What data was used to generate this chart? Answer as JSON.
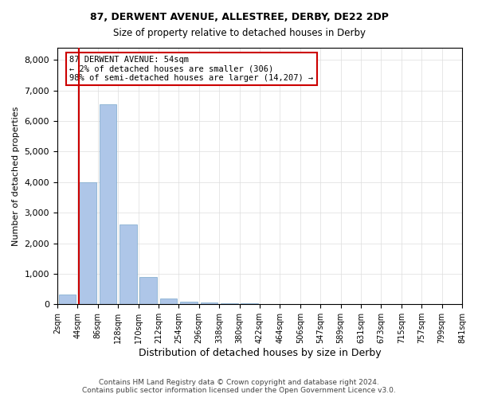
{
  "title1": "87, DERWENT AVENUE, ALLESTREE, DERBY, DE22 2DP",
  "title2": "Size of property relative to detached houses in Derby",
  "xlabel": "Distribution of detached houses by size in Derby",
  "ylabel": "Number of detached properties",
  "footnote": "Contains HM Land Registry data © Crown copyright and database right 2024.\nContains public sector information licensed under the Open Government Licence v3.0.",
  "bin_labels": [
    "2sqm",
    "44sqm",
    "86sqm",
    "128sqm",
    "170sqm",
    "212sqm",
    "254sqm",
    "296sqm",
    "338sqm",
    "380sqm",
    "422sqm",
    "464sqm",
    "506sqm",
    "547sqm",
    "589sqm",
    "631sqm",
    "673sqm",
    "715sqm",
    "757sqm",
    "799sqm",
    "841sqm"
  ],
  "bar_values": [
    306,
    4000,
    6550,
    2600,
    900,
    180,
    80,
    45,
    30,
    20,
    15,
    10,
    8,
    5,
    4,
    3,
    2,
    2,
    1,
    1
  ],
  "bar_color": "#aec6e8",
  "bar_edgecolor": "#7aA8cc",
  "property_line_x": 0,
  "property_size": "54sqm",
  "annotation_text": "87 DERWENT AVENUE: 54sqm\n← 2% of detached houses are smaller (306)\n98% of semi-detached houses are larger (14,207) →",
  "annotation_box_color": "#cc0000",
  "ylim": [
    0,
    8400
  ],
  "yticks": [
    0,
    1000,
    2000,
    3000,
    4000,
    5000,
    6000,
    7000,
    8000
  ],
  "background_color": "#ffffff",
  "grid_color": "#dddddd"
}
